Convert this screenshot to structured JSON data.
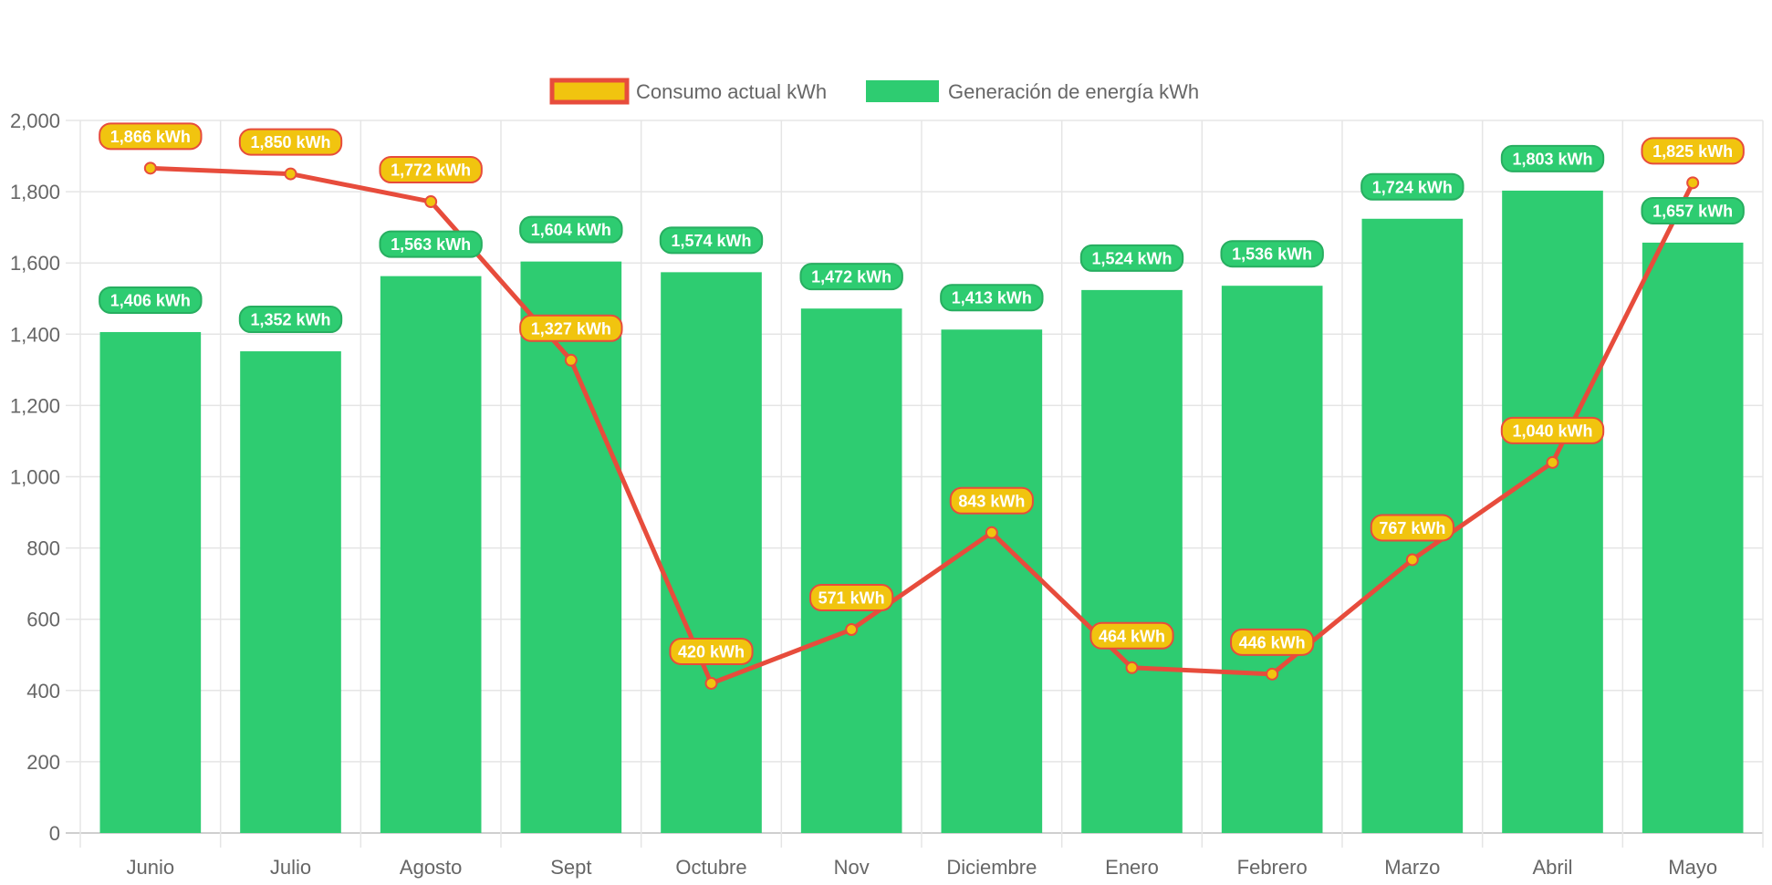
{
  "chart_data": {
    "type": "bar",
    "title": "",
    "xlabel": "",
    "ylabel": "",
    "ylim": [
      0,
      2000
    ],
    "yticks": [
      0,
      200,
      400,
      600,
      800,
      1000,
      1200,
      1400,
      1600,
      1800,
      2000
    ],
    "ytick_labels": [
      "0",
      "200",
      "400",
      "600",
      "800",
      "1,000",
      "1,200",
      "1,400",
      "1,600",
      "1,800",
      "2,000"
    ],
    "grid": true,
    "legend_position": "top",
    "categories": [
      "Junio",
      "Julio",
      "Agosto",
      "Sept",
      "Octubre",
      "Nov",
      "Diciembre",
      "Enero",
      "Febrero",
      "Marzo",
      "Abril",
      "Mayo"
    ],
    "series": [
      {
        "name": "Consumo actual kWh",
        "type": "line",
        "line_color": "#e74c3c",
        "fill_color": "#f1c40f",
        "values": [
          1866,
          1850,
          1772,
          1327,
          420,
          571,
          843,
          464,
          446,
          767,
          1040,
          1825
        ],
        "labels": [
          "1,866 kWh",
          "1,850 kWh",
          "1,772 kWh",
          "1,327 kWh",
          "420 kWh",
          "571 kWh",
          "843 kWh",
          "464 kWh",
          "446 kWh",
          "767 kWh",
          "1,040 kWh",
          "1,825 kWh"
        ]
      },
      {
        "name": "Generación de energía kWh",
        "type": "bar",
        "fill_color": "#2ecc71",
        "values": [
          1406,
          1352,
          1563,
          1604,
          1574,
          1472,
          1413,
          1524,
          1536,
          1724,
          1803,
          1657
        ],
        "labels": [
          "1,406 kWh",
          "1,352 kWh",
          "1,563 kWh",
          "1,604 kWh",
          "1,574 kWh",
          "1,472 kWh",
          "1,413 kWh",
          "1,524 kWh",
          "1,536 kWh",
          "1,724 kWh",
          "1,803 kWh",
          "1,657 kWh"
        ]
      }
    ]
  }
}
